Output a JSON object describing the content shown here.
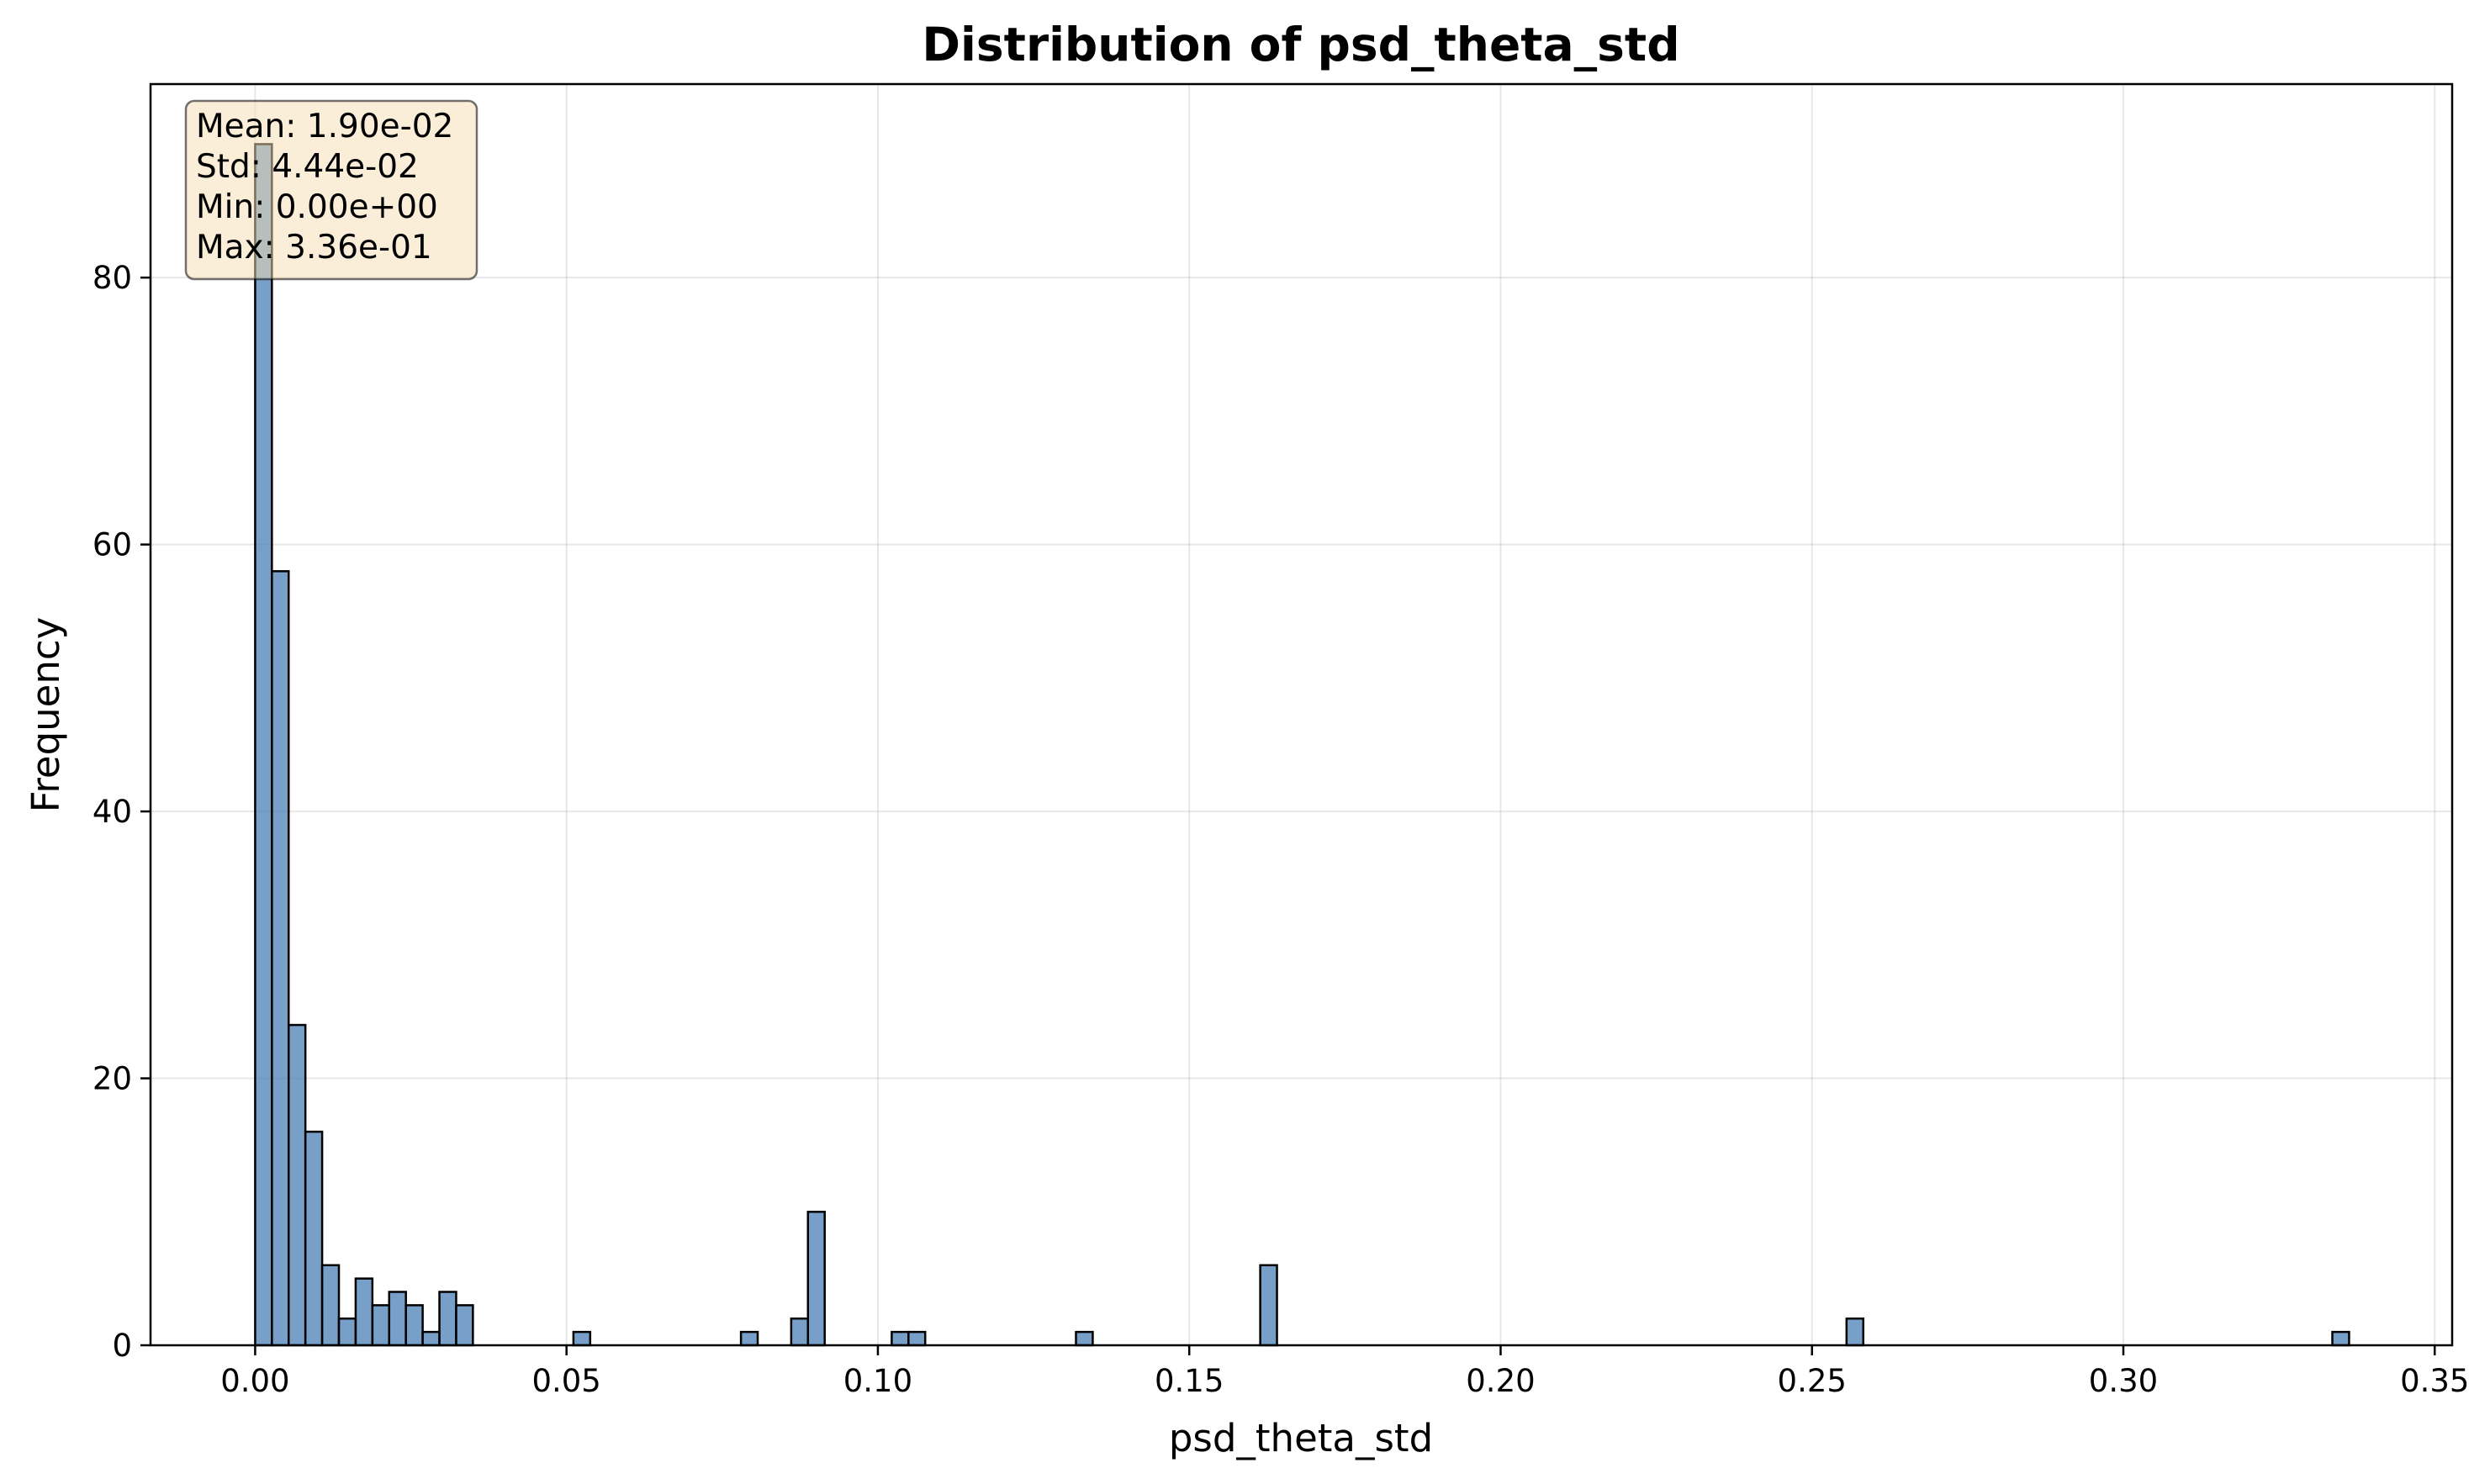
{
  "chart_data": {
    "type": "bar",
    "title": "Distribution of psd_theta_std",
    "xlabel": "psd_theta_std",
    "ylabel": "Frequency",
    "xlim": [
      -0.0168,
      0.3528
    ],
    "ylim": [
      0,
      94.5
    ],
    "xticks": [
      {
        "value": 0.0,
        "label": "0.00"
      },
      {
        "value": 0.05,
        "label": "0.05"
      },
      {
        "value": 0.1,
        "label": "0.10"
      },
      {
        "value": 0.15,
        "label": "0.15"
      },
      {
        "value": 0.2,
        "label": "0.20"
      },
      {
        "value": 0.25,
        "label": "0.25"
      },
      {
        "value": 0.3,
        "label": "0.30"
      },
      {
        "value": 0.35,
        "label": "0.35"
      }
    ],
    "yticks": [
      {
        "value": 0,
        "label": "0"
      },
      {
        "value": 20,
        "label": "20"
      },
      {
        "value": 40,
        "label": "40"
      },
      {
        "value": 60,
        "label": "60"
      },
      {
        "value": 80,
        "label": "80"
      }
    ],
    "grid": true,
    "bin_width": 0.00269,
    "bar_color": "#4a7fb5",
    "edge_color": "#000000",
    "bins": [
      {
        "x": 0.0,
        "count": 90
      },
      {
        "x": 0.00269,
        "count": 58
      },
      {
        "x": 0.00538,
        "count": 24
      },
      {
        "x": 0.00807,
        "count": 16
      },
      {
        "x": 0.01076,
        "count": 6
      },
      {
        "x": 0.01345,
        "count": 2
      },
      {
        "x": 0.01614,
        "count": 5
      },
      {
        "x": 0.01883,
        "count": 3
      },
      {
        "x": 0.02152,
        "count": 4
      },
      {
        "x": 0.02421,
        "count": 3
      },
      {
        "x": 0.0269,
        "count": 1
      },
      {
        "x": 0.02959,
        "count": 4
      },
      {
        "x": 0.03228,
        "count": 3
      },
      {
        "x": 0.05111,
        "count": 1
      },
      {
        "x": 0.07801,
        "count": 1
      },
      {
        "x": 0.08608,
        "count": 2
      },
      {
        "x": 0.08877,
        "count": 10
      },
      {
        "x": 0.10222,
        "count": 1
      },
      {
        "x": 0.10491,
        "count": 1
      },
      {
        "x": 0.13181,
        "count": 1
      },
      {
        "x": 0.1614,
        "count": 6
      },
      {
        "x": 0.25555,
        "count": 2
      },
      {
        "x": 0.33356,
        "count": 1
      }
    ],
    "stats_box": {
      "lines": [
        "Mean: 1.90e-02",
        "Std: 4.44e-02",
        "Min: 0.00e+00",
        "Max: 3.36e-01"
      ],
      "placement": "top-left",
      "background": "#f5deb3",
      "border": "#000000"
    }
  }
}
